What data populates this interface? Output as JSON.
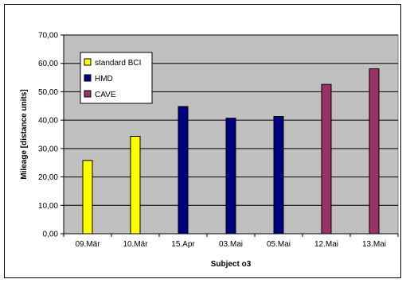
{
  "chart_data": {
    "type": "bar",
    "categories": [
      "09.Mär",
      "10.Mär",
      "15.Apr",
      "03.Mai",
      "05.Mai",
      "12.Mai",
      "13.Mai"
    ],
    "series": [
      {
        "name": "standard BCI",
        "color": "#ffff00",
        "values": [
          25.8,
          34.3,
          null,
          null,
          null,
          null,
          null
        ]
      },
      {
        "name": "HMD",
        "color": "#000080",
        "values": [
          null,
          null,
          44.8,
          40.7,
          41.3,
          null,
          null
        ]
      },
      {
        "name": "CAVE",
        "color": "#993366",
        "values": [
          null,
          null,
          null,
          null,
          null,
          52.6,
          58.1
        ]
      }
    ],
    "xlabel": "Subject o3",
    "ylabel": "Mileage [distance units]",
    "ylim": [
      0,
      70
    ],
    "yticks": [
      "0,00",
      "10,00",
      "20,00",
      "30,00",
      "40,00",
      "50,00",
      "60,00",
      "70,00"
    ],
    "grid": true,
    "plot_background": "#c0c0c0",
    "legend_position": "top-left"
  }
}
